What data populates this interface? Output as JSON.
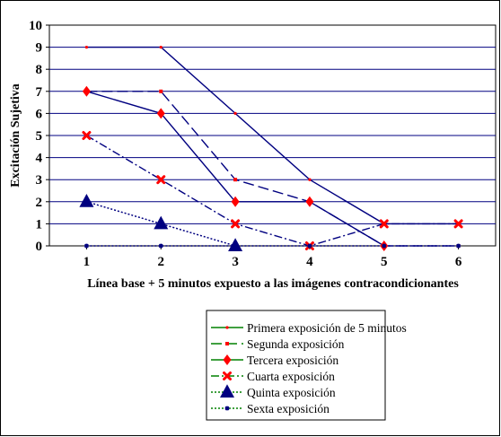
{
  "chart_data": {
    "type": "line",
    "title": "",
    "xlabel": "Línea base + 5 minutos expuesto a las imágenes contracondicionantes",
    "ylabel": "Excitación Sujetiva",
    "x": [
      1,
      2,
      3,
      4,
      5,
      6
    ],
    "x_tick_labels": [
      "1",
      "2",
      "3",
      "4",
      "5",
      "6"
    ],
    "y_tick_labels": [
      "0",
      "1",
      "2",
      "3",
      "4",
      "5",
      "6",
      "7",
      "8",
      "9",
      "10"
    ],
    "ylim": [
      0,
      10
    ],
    "xlim": [
      0.5,
      6.5
    ],
    "grid": "horizontal",
    "legend_position": "bottom-center",
    "series": [
      {
        "name": "Primera exposición de 5 minutos",
        "values": [
          9,
          9,
          6,
          3,
          1,
          1
        ],
        "color": "#000080",
        "marker": "circle",
        "dash": "solid"
      },
      {
        "name": "Segunda exposición",
        "values": [
          7,
          7,
          3,
          2,
          0,
          0
        ],
        "color": "#000080",
        "marker": "square",
        "dash": "long-dash"
      },
      {
        "name": "Tercera exposición",
        "values": [
          7,
          6,
          2,
          2,
          0,
          null
        ],
        "color": "#000080",
        "marker": "diamond",
        "dash": "solid"
      },
      {
        "name": "Cuarta exposición",
        "values": [
          5,
          3,
          1,
          0,
          1,
          1
        ],
        "color": "#000080",
        "marker": "x",
        "dash": "dash-dot"
      },
      {
        "name": "Quinta exposición",
        "values": [
          2,
          1,
          0,
          null,
          null,
          null
        ],
        "color": "#000080",
        "marker": "triangle",
        "dash": "dotted"
      },
      {
        "name": "Sexta exposición",
        "values": [
          0,
          0,
          0,
          0,
          0,
          0
        ],
        "color": "#000080",
        "marker": "star",
        "dash": "dotted"
      }
    ],
    "colors": {
      "line": "#000080",
      "marker_red": "#ff0000",
      "marker_navy": "#000080",
      "legend_green": "#008000",
      "grid": "#000080",
      "text": "#000000"
    }
  }
}
